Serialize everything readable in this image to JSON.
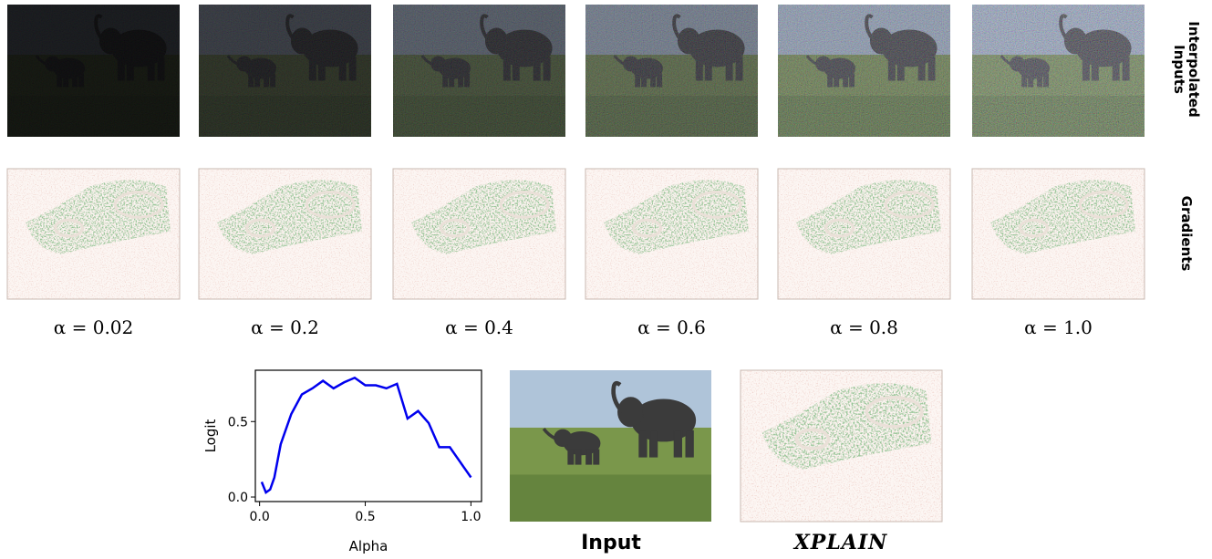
{
  "row_labels": [
    "Interpolated Inputs",
    "Gradients"
  ],
  "alpha_labels": [
    "α = 0.02",
    "α = 0.2",
    "α = 0.4",
    "α = 0.6",
    "α = 0.8",
    "α = 1.0"
  ],
  "input_label": "Input",
  "xplain_label": "XPLAIN",
  "chart_data": {
    "type": "line",
    "xlabel": "Alpha",
    "ylabel": "Logit",
    "x": [
      0.01,
      0.03,
      0.05,
      0.07,
      0.1,
      0.15,
      0.2,
      0.25,
      0.3,
      0.35,
      0.4,
      0.45,
      0.5,
      0.55,
      0.6,
      0.65,
      0.7,
      0.75,
      0.8,
      0.85,
      0.9,
      0.95,
      1.0
    ],
    "values": [
      0.1,
      0.03,
      0.05,
      0.13,
      0.35,
      0.55,
      0.68,
      0.72,
      0.77,
      0.72,
      0.76,
      0.79,
      0.74,
      0.74,
      0.72,
      0.75,
      0.52,
      0.57,
      0.49,
      0.33,
      0.33,
      0.23,
      0.13
    ],
    "color": "#0000ee",
    "xlim": [
      -0.02,
      1.05
    ],
    "ylim": [
      -0.03,
      0.84
    ],
    "xticks": [
      {
        "value": 0,
        "label": "0.0"
      },
      0.5,
      {
        "value": 1,
        "label": "1.0"
      }
    ],
    "yticks": [
      {
        "value": 0,
        "label": "0.0"
      },
      0.5
    ]
  }
}
